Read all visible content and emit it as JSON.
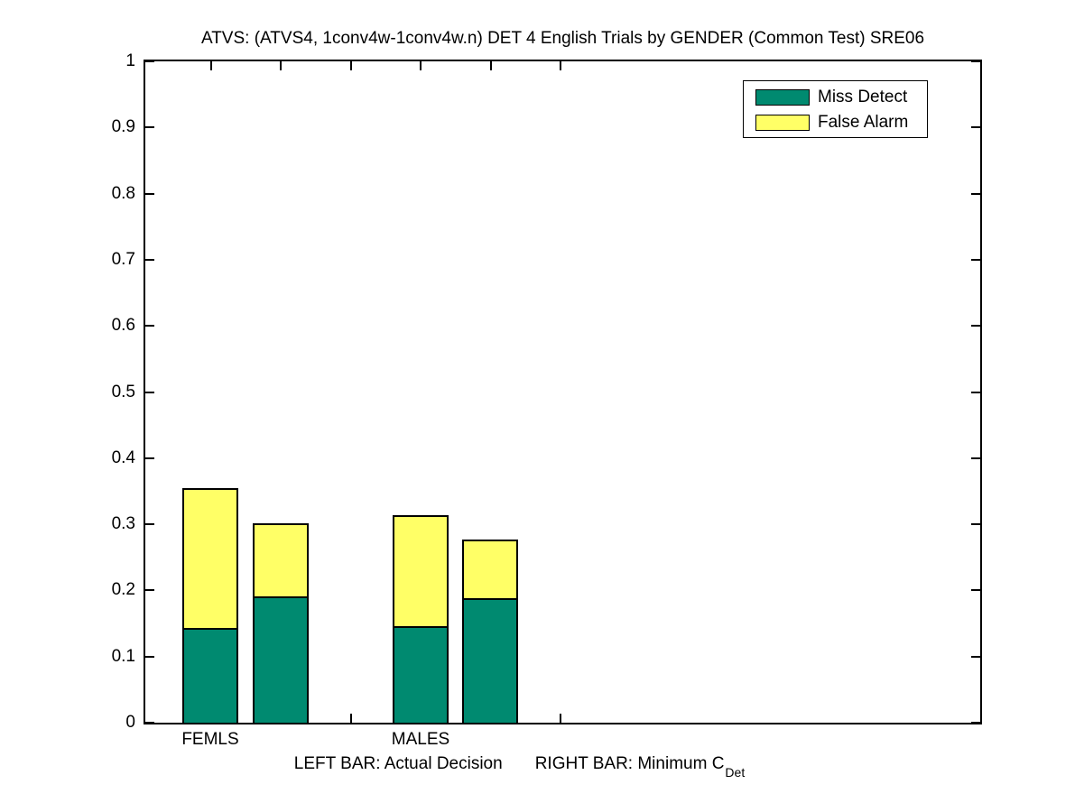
{
  "chart_data": {
    "type": "bar",
    "stacked": true,
    "title": "ATVS: (ATVS4, 1conv4w-1conv4w.n) DET 4 English Trials by GENDER (Common Test) SRE06",
    "categories": [
      "FEMLS",
      "MALES"
    ],
    "bar_kinds": [
      "Actual Decision",
      "Minimum CDet"
    ],
    "series": [
      {
        "name": "Miss Detect",
        "color": "#008A70",
        "values": [
          [
            0.144,
            0.191
          ],
          [
            0.146,
            0.189
          ]
        ]
      },
      {
        "name": "False Alarm",
        "color": "#FFFF66",
        "values": [
          [
            0.211,
            0.111
          ],
          [
            0.168,
            0.088
          ]
        ]
      }
    ],
    "totals": [
      [
        0.355,
        0.302
      ],
      [
        0.314,
        0.277
      ]
    ],
    "ylim": [
      0,
      1
    ],
    "y_ticks": [
      {
        "label": "0",
        "value": 0
      },
      {
        "label": "0.1",
        "value": 0.1
      },
      {
        "label": "0.2",
        "value": 0.2
      },
      {
        "label": "0.3",
        "value": 0.3
      },
      {
        "label": "0.4",
        "value": 0.4
      },
      {
        "label": "0.5",
        "value": 0.5
      },
      {
        "label": "0.6",
        "value": 0.6
      },
      {
        "label": "0.7",
        "value": 0.7
      },
      {
        "label": "0.8",
        "value": 0.8
      },
      {
        "label": "0.9",
        "value": 0.9
      },
      {
        "label": "1",
        "value": 1
      }
    ],
    "grid": false,
    "legend_position": "top-right",
    "annotations": {
      "left_bar": "LEFT BAR: Actual Decision",
      "right_bar": "RIGHT BAR: Minimum C",
      "right_bar_subscript": "Det"
    },
    "axis_color": "#000000",
    "background_color": "#FFFFFF"
  }
}
